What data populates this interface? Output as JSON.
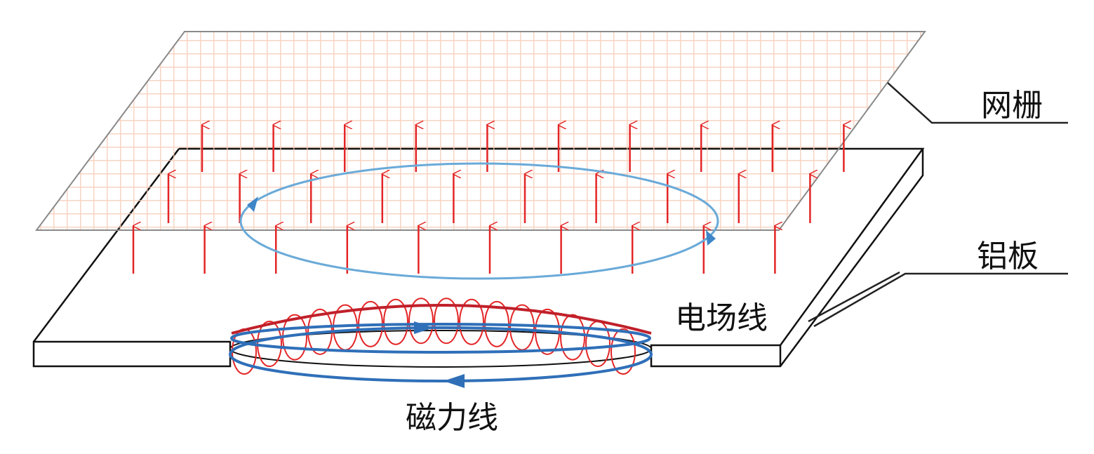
{
  "labels": {
    "grid": "网栅",
    "plate": "铝板",
    "electric_field": "电场线",
    "magnetic_field": "磁力线"
  }
}
